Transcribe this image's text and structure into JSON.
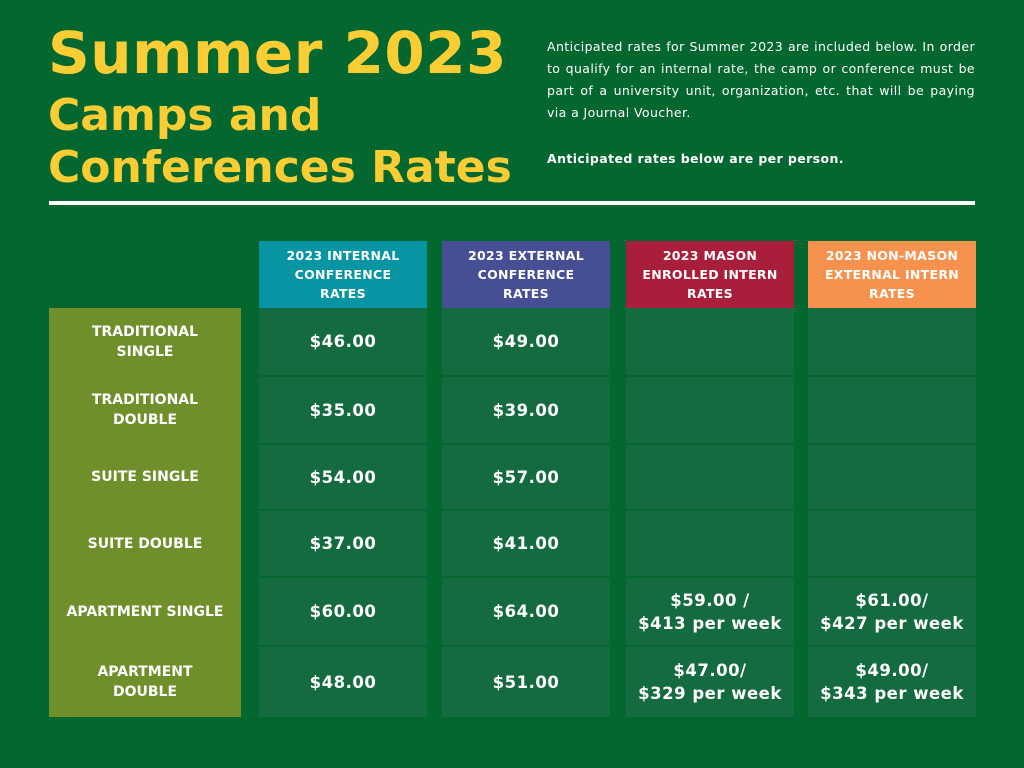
{
  "header": {
    "title": "Summer 2023",
    "subtitle": "Camps and\nConferences Rates",
    "description": "Anticipated rates for Summer 2023 are included below. In order to qualify for an internal rate, the camp or conference must be part of a university unit, organization, etc. that will be paying via a Journal Voucher.",
    "note": "Anticipated rates below are per person."
  },
  "table": {
    "columns": [
      {
        "label": "2023 INTERNAL\nCONFERENCE\nRATES",
        "color": "#0895a3"
      },
      {
        "label": "2023 EXTERNAL\nCONFERENCE\nRATES",
        "color": "#464e94"
      },
      {
        "label": "2023 MASON\nENROLLED INTERN\nRATES",
        "color": "#a81e3b"
      },
      {
        "label": "2023 NON-MASON\nEXTERNAL INTERN\nRATES",
        "color": "#f6924e"
      }
    ],
    "rows": [
      {
        "label": "TRADITIONAL\nSINGLE",
        "cells": [
          "$46.00",
          "$49.00",
          null,
          null
        ]
      },
      {
        "label": "TRADITIONAL\nDOUBLE",
        "cells": [
          "$35.00",
          "$39.00",
          null,
          null
        ]
      },
      {
        "label": "SUITE SINGLE",
        "cells": [
          "$54.00",
          "$57.00",
          null,
          null
        ]
      },
      {
        "label": "SUITE DOUBLE",
        "cells": [
          "$37.00",
          "$41.00",
          null,
          null
        ]
      },
      {
        "label": "APARTMENT SINGLE",
        "cells": [
          "$60.00",
          "$64.00",
          "$59.00 /\n$413 per week",
          "$61.00/\n$427 per week"
        ]
      },
      {
        "label": "APARTMENT\nDOUBLE",
        "cells": [
          "$48.00",
          "$51.00",
          "$47.00/\n$329 per week",
          "$49.00/\n$343 per week"
        ]
      }
    ]
  }
}
